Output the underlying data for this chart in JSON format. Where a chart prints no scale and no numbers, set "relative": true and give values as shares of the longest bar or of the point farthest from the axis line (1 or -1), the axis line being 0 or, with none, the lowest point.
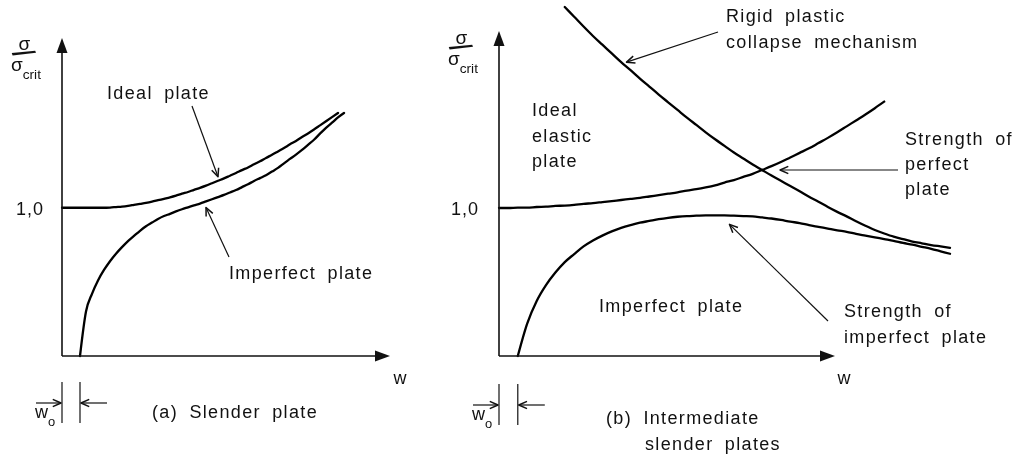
{
  "chart_data": [
    {
      "type": "line",
      "relative": true,
      "title": "(a) Slender plate",
      "xlabel": "w",
      "ylabel": "σ/σ$_{crit}$",
      "categories": [
        null,
        null,
        null,
        null,
        null,
        null,
        null,
        null,
        null,
        null,
        null,
        null,
        null,
        null,
        null,
        null,
        null,
        null,
        null,
        null,
        null,
        null,
        null,
        null,
        null,
        null,
        null,
        null,
        null,
        null,
        null,
        null,
        null,
        null,
        null,
        null,
        null,
        null,
        null,
        null,
        null,
        null,
        null,
        null,
        null,
        null,
        null,
        null
      ],
      "series": [
        {
          "name": "Ideal plate",
          "color": "#000000",
          "values": [
            0.61,
            0.61,
            0.61,
            0.61,
            0.61,
            0.61,
            0.61,
            0.61,
            0.611,
            0.613,
            0.615,
            0.618,
            0.622,
            0.626,
            0.63,
            0.635,
            0.641,
            0.647,
            0.653,
            0.66,
            0.668,
            0.675,
            0.684,
            0.692,
            0.701,
            0.711,
            0.721,
            0.731,
            0.742,
            0.753,
            0.765,
            0.776,
            0.789,
            0.801,
            0.815,
            0.828,
            0.842,
            0.856,
            0.871,
            0.885,
            0.901,
            0.916,
            0.932,
            0.949,
            0.966,
            0.983,
            1.0,
            null
          ]
        },
        {
          "color": "#000000",
          "values": [
            null,
            null,
            null,
            0,
            0.183,
            0.256,
            0.311,
            0.354,
            0.39,
            0.421,
            0.448,
            0.473,
            0.494,
            0.515,
            0.534,
            0.549,
            0.564,
            0.576,
            0.585,
            0.595,
            0.604,
            0.612,
            0.62,
            0.627,
            0.636,
            0.645,
            0.654,
            0.663,
            0.673,
            0.683,
            0.695,
            0.707,
            0.72,
            0.732,
            0.744,
            0.759,
            0.774,
            0.793,
            0.811,
            0.829,
            0.848,
            0.869,
            0.89,
            0.915,
            0.939,
            0.96,
            0.982,
            1.0
          ]
        }
      ],
      "annotations": [
        "1,0",
        "Imperfect plate",
        "w$_{o}$"
      ]
    },
    {
      "type": "line",
      "relative": true,
      "title": "(b) Intermediate slender plates",
      "xlabel": "w",
      "ylabel": "σ/σ$_{crit}$",
      "categories": [
        null,
        null,
        null,
        null,
        null,
        null,
        null,
        null,
        null,
        null,
        null,
        null,
        null,
        null,
        null,
        null,
        null,
        null,
        null,
        null,
        null,
        null,
        null,
        null,
        null,
        null,
        null,
        null,
        null,
        null,
        null,
        null,
        null,
        null,
        null,
        null,
        null,
        null,
        null,
        null,
        null,
        null,
        null,
        null,
        null,
        null,
        null,
        null,
        null
      ],
      "series": [
        {
          "name": "Ideal elastic plate",
          "color": "#000000",
          "values": [
            0.424,
            0.424,
            0.425,
            0.425,
            0.427,
            0.428,
            0.43,
            0.431,
            0.433,
            0.436,
            0.438,
            0.441,
            0.444,
            0.447,
            0.45,
            0.453,
            0.457,
            0.461,
            0.465,
            0.469,
            0.474,
            0.478,
            0.483,
            0.489,
            0.497,
            0.504,
            0.513,
            0.522,
            0.533,
            0.544,
            0.556,
            0.569,
            0.582,
            0.595,
            0.61,
            0.625,
            0.641,
            0.658,
            0.675,
            0.692,
            0.71,
            0.729,
            null,
            null,
            null,
            null,
            null,
            null,
            null
          ]
        },
        {
          "color": "#000000",
          "values": [
            null,
            null,
            null,
            null,
            null,
            null,
            null,
            1.0,
            0.972,
            0.944,
            0.917,
            0.892,
            0.867,
            0.842,
            0.819,
            0.795,
            0.772,
            0.749,
            0.727,
            0.705,
            0.683,
            0.662,
            0.641,
            0.621,
            0.602,
            0.583,
            0.566,
            0.549,
            0.533,
            0.517,
            0.502,
            0.487,
            0.472,
            0.456,
            0.442,
            0.427,
            0.413,
            0.4,
            0.386,
            0.373,
            0.361,
            0.351,
            0.342,
            0.335,
            0.328,
            0.323,
            0.318,
            0.314,
            0.31
          ]
        },
        {
          "name": "Imperfect plate",
          "color": "#000000",
          "values": [
            null,
            null,
            0,
            0.093,
            0.157,
            0.203,
            0.239,
            0.269,
            0.292,
            0.314,
            0.331,
            0.345,
            0.357,
            0.367,
            0.375,
            0.382,
            0.387,
            0.392,
            0.396,
            0.399,
            0.401,
            0.402,
            0.403,
            0.403,
            0.403,
            0.402,
            0.401,
            0.4,
            0.397,
            0.394,
            0.39,
            0.385,
            0.381,
            0.375,
            0.37,
            0.365,
            0.36,
            0.356,
            0.35,
            0.345,
            0.34,
            0.335,
            0.33,
            0.324,
            0.319,
            0.313,
            0.307,
            0.3,
            0.293
          ]
        }
      ],
      "annotations": [
        "Rigid plastic collapse mechanism",
        "Strength of perfect plate",
        "1,0",
        "Strength of imperfect plate",
        "w$_{o}$"
      ]
    }
  ]
}
